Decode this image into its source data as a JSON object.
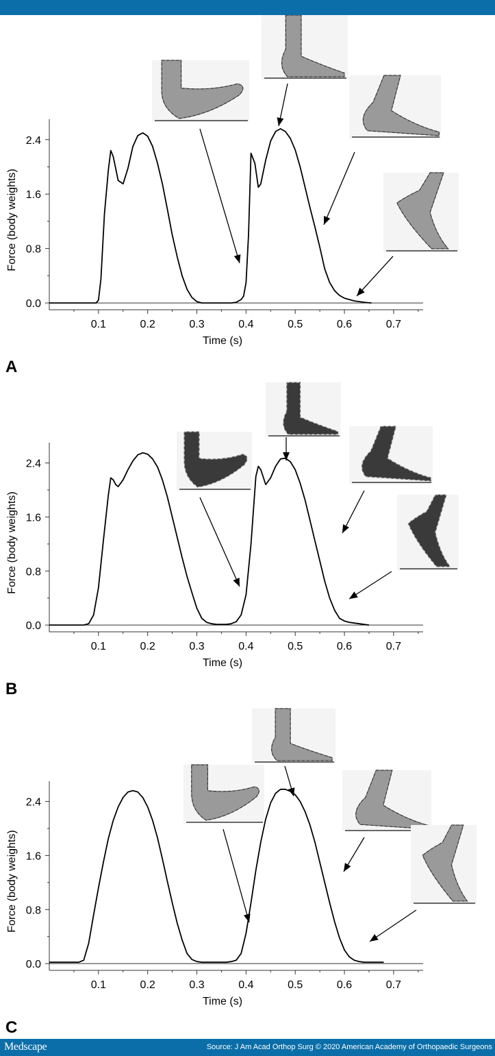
{
  "colors": {
    "brand_bar": "#0b6ea9",
    "line": "#000000",
    "axis": "#333333"
  },
  "footer": {
    "logo": "Medscape",
    "source": "Source: J Am Acad Orthop Surg © 2020 American Academy of Orthopaedic Surgeons"
  },
  "chart_data": [
    {
      "type": "line",
      "panel_label": "A",
      "xlabel": "Time (s)",
      "ylabel": "Force (body weights)",
      "xlim": [
        0,
        0.76
      ],
      "ylim": [
        -0.1,
        2.7
      ],
      "xticks": [
        0.1,
        0.2,
        0.3,
        0.4,
        0.5,
        0.6,
        0.7
      ],
      "xtick_labels": [
        "0.1",
        "0.2",
        "0.3",
        "0.4",
        "0.5",
        "0.6",
        "0.7"
      ],
      "yticks": [
        0.0,
        0.8,
        1.6,
        2.4
      ],
      "ytick_labels": [
        "0.0",
        "0.8",
        "1.6",
        "2.4"
      ],
      "grid": false,
      "foot_images": [
        "barefoot-midfoot-strike",
        "barefoot-foot-flat",
        "barefoot-heel-off",
        "barefoot-toe-off"
      ],
      "series": [
        {
          "x": [
            0,
            0.095,
            0.1,
            0.105,
            0.112,
            0.12,
            0.125,
            0.13,
            0.14,
            0.15,
            0.16,
            0.17,
            0.18,
            0.19,
            0.2,
            0.21,
            0.22,
            0.23,
            0.24,
            0.25,
            0.26,
            0.27,
            0.28,
            0.29,
            0.3,
            0.31,
            0.32,
            0.33,
            0.34,
            0.35,
            0.36,
            0.37,
            0.38,
            0.39,
            0.395,
            0.4,
            0.405,
            0.41,
            0.418,
            0.425,
            0.43,
            0.44,
            0.45,
            0.46,
            0.47,
            0.48,
            0.49,
            0.5,
            0.51,
            0.52,
            0.53,
            0.54,
            0.55,
            0.56,
            0.57,
            0.58,
            0.59,
            0.6,
            0.61,
            0.62,
            0.63,
            0.64,
            0.655
          ],
          "y": [
            0,
            0,
            0.04,
            0.35,
            1.3,
            1.95,
            2.24,
            2.15,
            1.8,
            1.75,
            1.98,
            2.3,
            2.46,
            2.5,
            2.45,
            2.3,
            2.05,
            1.75,
            1.38,
            1.0,
            0.68,
            0.4,
            0.2,
            0.08,
            0.02,
            0.0,
            0.0,
            0.0,
            0.0,
            0.0,
            0.0,
            0.0,
            0.01,
            0.05,
            0.1,
            0.3,
            1.0,
            2.2,
            2.05,
            1.7,
            1.75,
            2.1,
            2.38,
            2.52,
            2.56,
            2.52,
            2.42,
            2.25,
            2.0,
            1.7,
            1.4,
            1.12,
            0.82,
            0.5,
            0.3,
            0.18,
            0.11,
            0.07,
            0.05,
            0.03,
            0.02,
            0.01,
            0.0
          ]
        }
      ]
    },
    {
      "type": "line",
      "panel_label": "B",
      "xlabel": "Time (s)",
      "ylabel": "Force (body weights)",
      "xlim": [
        0,
        0.76
      ],
      "ylim": [
        -0.1,
        2.7
      ],
      "xticks": [
        0.1,
        0.2,
        0.3,
        0.4,
        0.5,
        0.6,
        0.7
      ],
      "xtick_labels": [
        "0.1",
        "0.2",
        "0.3",
        "0.4",
        "0.5",
        "0.6",
        "0.7"
      ],
      "yticks": [
        0.0,
        0.8,
        1.6,
        2.4
      ],
      "ytick_labels": [
        "0.0",
        "0.8",
        "1.6",
        "2.4"
      ],
      "grid": false,
      "foot_images": [
        "shod-midfoot-strike",
        "shod-foot-flat",
        "shod-heel-off",
        "shod-toe-off"
      ],
      "series": [
        {
          "x": [
            0,
            0.07,
            0.08,
            0.09,
            0.1,
            0.11,
            0.12,
            0.125,
            0.13,
            0.135,
            0.14,
            0.15,
            0.16,
            0.17,
            0.18,
            0.19,
            0.2,
            0.21,
            0.22,
            0.23,
            0.24,
            0.25,
            0.26,
            0.27,
            0.28,
            0.29,
            0.3,
            0.31,
            0.32,
            0.33,
            0.34,
            0.35,
            0.36,
            0.37,
            0.38,
            0.39,
            0.4,
            0.41,
            0.42,
            0.425,
            0.43,
            0.44,
            0.45,
            0.46,
            0.47,
            0.48,
            0.49,
            0.5,
            0.51,
            0.52,
            0.53,
            0.54,
            0.55,
            0.56,
            0.57,
            0.58,
            0.59,
            0.6,
            0.61,
            0.62,
            0.63,
            0.64,
            0.65
          ],
          "y": [
            0,
            0,
            0.02,
            0.15,
            0.55,
            1.25,
            1.92,
            2.18,
            2.15,
            2.08,
            2.05,
            2.15,
            2.3,
            2.43,
            2.52,
            2.55,
            2.53,
            2.46,
            2.34,
            2.15,
            1.9,
            1.6,
            1.3,
            1.0,
            0.72,
            0.48,
            0.25,
            0.1,
            0.04,
            0.02,
            0.01,
            0.01,
            0.01,
            0.02,
            0.05,
            0.15,
            0.45,
            1.2,
            2.2,
            2.35,
            2.3,
            2.08,
            2.18,
            2.35,
            2.46,
            2.47,
            2.42,
            2.3,
            2.1,
            1.85,
            1.55,
            1.25,
            0.95,
            0.65,
            0.4,
            0.22,
            0.1,
            0.06,
            0.04,
            0.03,
            0.02,
            0.01,
            0.0
          ]
        }
      ]
    },
    {
      "type": "line",
      "panel_label": "C",
      "xlabel": "Time (s)",
      "ylabel": "Force (body weights)",
      "xlim": [
        0,
        0.76
      ],
      "ylim": [
        -0.1,
        2.7
      ],
      "xticks": [
        0.1,
        0.2,
        0.3,
        0.4,
        0.5,
        0.6,
        0.7
      ],
      "xtick_labels": [
        "0.1",
        "0.2",
        "0.3",
        "0.4",
        "0.5",
        "0.6",
        "0.7"
      ],
      "yticks": [
        0.0,
        0.8,
        1.6,
        2.4
      ],
      "ytick_labels": [
        "0.0",
        "0.8",
        "1.6",
        "2.4"
      ],
      "grid": false,
      "foot_images": [
        "barefoot-forefoot-strike",
        "barefoot-foot-flat",
        "barefoot-heel-off",
        "barefoot-toe-off"
      ],
      "series": [
        {
          "x": [
            0,
            0.06,
            0.07,
            0.08,
            0.09,
            0.1,
            0.11,
            0.12,
            0.13,
            0.14,
            0.15,
            0.16,
            0.17,
            0.18,
            0.19,
            0.2,
            0.21,
            0.22,
            0.23,
            0.24,
            0.25,
            0.26,
            0.27,
            0.28,
            0.29,
            0.3,
            0.31,
            0.32,
            0.33,
            0.34,
            0.35,
            0.36,
            0.37,
            0.38,
            0.39,
            0.4,
            0.41,
            0.42,
            0.43,
            0.44,
            0.45,
            0.46,
            0.47,
            0.48,
            0.49,
            0.5,
            0.51,
            0.52,
            0.53,
            0.54,
            0.55,
            0.56,
            0.57,
            0.58,
            0.59,
            0.6,
            0.61,
            0.62,
            0.63,
            0.64,
            0.65,
            0.66,
            0.67,
            0.68
          ],
          "y": [
            0.02,
            0.02,
            0.05,
            0.3,
            0.72,
            1.12,
            1.5,
            1.85,
            2.12,
            2.32,
            2.46,
            2.54,
            2.56,
            2.54,
            2.46,
            2.32,
            2.12,
            1.86,
            1.55,
            1.22,
            0.9,
            0.6,
            0.35,
            0.15,
            0.06,
            0.03,
            0.02,
            0.02,
            0.02,
            0.02,
            0.02,
            0.02,
            0.03,
            0.05,
            0.15,
            0.45,
            0.9,
            1.38,
            1.8,
            2.14,
            2.38,
            2.52,
            2.58,
            2.58,
            2.55,
            2.5,
            2.4,
            2.25,
            2.05,
            1.8,
            1.5,
            1.2,
            0.9,
            0.62,
            0.38,
            0.2,
            0.1,
            0.05,
            0.03,
            0.02,
            0.02,
            0.02,
            0.02,
            0.02
          ]
        }
      ]
    }
  ]
}
